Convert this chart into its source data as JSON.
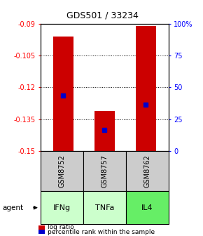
{
  "title": "GDS501 / 33234",
  "samples": [
    "GSM8752",
    "GSM8757",
    "GSM8762"
  ],
  "agents": [
    "IFNg",
    "TNFa",
    "IL4"
  ],
  "bar_bottoms": [
    -0.15,
    -0.15,
    -0.15
  ],
  "bar_tops": [
    -0.096,
    -0.131,
    -0.091
  ],
  "percentile_values": [
    -0.124,
    -0.14,
    -0.128
  ],
  "ylim_left": [
    -0.15,
    -0.09
  ],
  "ylim_right": [
    0,
    100
  ],
  "yticks_left": [
    -0.15,
    -0.135,
    -0.12,
    -0.105,
    -0.09
  ],
  "yticks_right": [
    0,
    25,
    50,
    75,
    100
  ],
  "ytick_labels_left": [
    "-0.15",
    "-0.135",
    "-0.12",
    "-0.105",
    "-0.09"
  ],
  "ytick_labels_right": [
    "0",
    "25",
    "50",
    "75",
    "100%"
  ],
  "gridlines": [
    -0.105,
    -0.12,
    -0.135
  ],
  "bar_color": "#cc0000",
  "percentile_color": "#0000cc",
  "sample_box_color": "#cccccc",
  "agent_box_colors": [
    "#ccffcc",
    "#ccffcc",
    "#66ee66"
  ],
  "legend_items": [
    "log ratio",
    "percentile rank within the sample"
  ],
  "bar_width": 0.5
}
